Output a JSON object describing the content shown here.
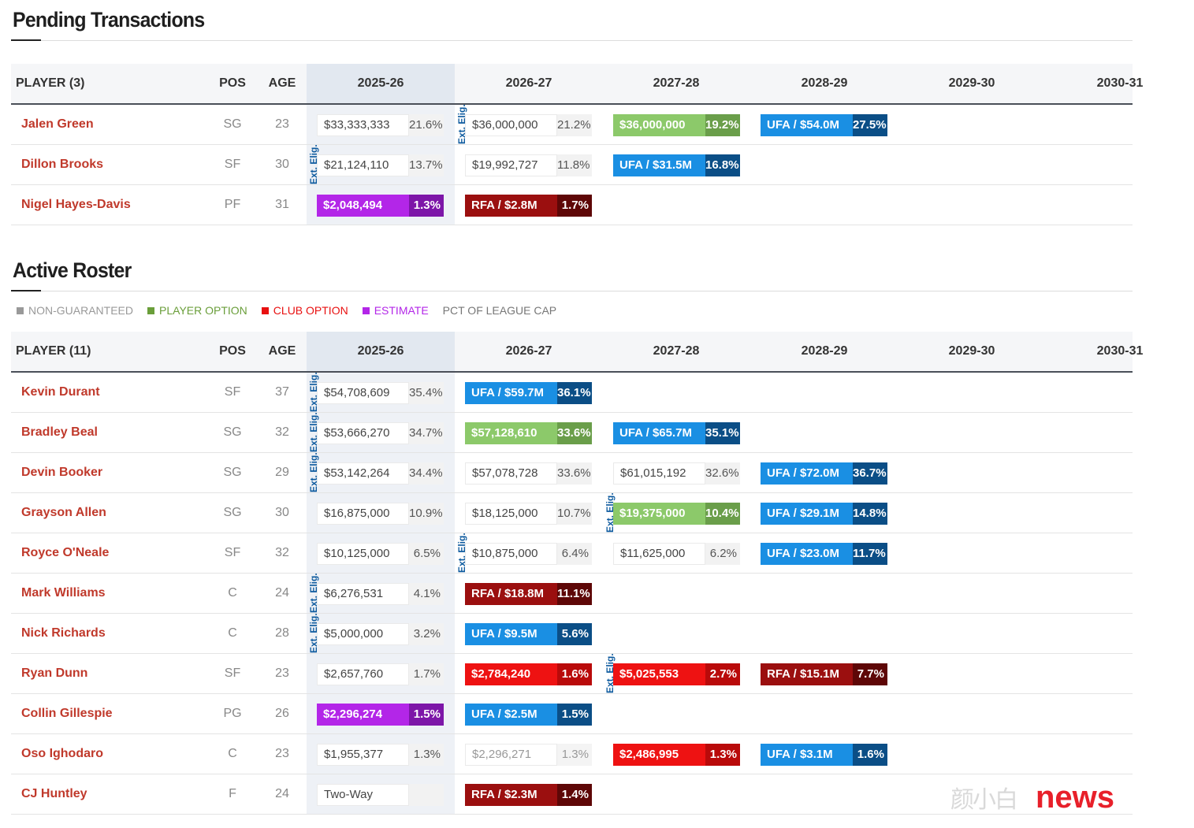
{
  "pending": {
    "title": "Pending Transactions",
    "headers": {
      "player": "PLAYER (3)",
      "pos": "POS",
      "age": "AGE",
      "years": [
        "2025-26",
        "2026-27",
        "2027-28",
        "2028-29",
        "2029-30",
        "2030-31"
      ]
    },
    "rows": [
      {
        "name": "Jalen Green",
        "pos": "SG",
        "age": "23",
        "contract": [
          {
            "type": "normal",
            "amount": "$33,333,333",
            "pct": "21.6%"
          },
          {
            "type": "normal",
            "amount": "$36,000,000",
            "pct": "21.2%",
            "elig": "Ext. Elig."
          },
          {
            "type": "player-option",
            "amount": "$36,000,000",
            "pct": "19.2%"
          },
          {
            "type": "ufa",
            "amount": "UFA / $54.0M",
            "pct": "27.5%"
          }
        ]
      },
      {
        "name": "Dillon Brooks",
        "pos": "SF",
        "age": "30",
        "contract": [
          {
            "type": "normal",
            "amount": "$21,124,110",
            "pct": "13.7%",
            "elig": "Ext. Elig."
          },
          {
            "type": "normal",
            "amount": "$19,992,727",
            "pct": "11.8%"
          },
          {
            "type": "ufa",
            "amount": "UFA / $31.5M",
            "pct": "16.8%"
          }
        ]
      },
      {
        "name": "Nigel Hayes-Davis",
        "pos": "PF",
        "age": "31",
        "contract": [
          {
            "type": "estimate",
            "amount": "$2,048,494",
            "pct": "1.3%"
          },
          {
            "type": "rfa",
            "amount": "RFA / $2.8M",
            "pct": "1.7%"
          }
        ]
      }
    ]
  },
  "roster": {
    "title": "Active Roster",
    "legend": [
      {
        "label": "NON-GUARANTEED",
        "color": "#999999"
      },
      {
        "label": "PLAYER OPTION",
        "color": "#6a9e3a"
      },
      {
        "label": "CLUB OPTION",
        "color": "#e81010"
      },
      {
        "label": "ESTIMATE",
        "color": "#b326e8"
      },
      {
        "label": "PCT OF LEAGUE CAP",
        "color": "#777777"
      }
    ],
    "headers": {
      "player": "PLAYER (11)",
      "pos": "POS",
      "age": "AGE",
      "years": [
        "2025-26",
        "2026-27",
        "2027-28",
        "2028-29",
        "2029-30",
        "2030-31"
      ]
    },
    "rows": [
      {
        "name": "Kevin Durant",
        "pos": "SF",
        "age": "37",
        "contract": [
          {
            "type": "normal",
            "amount": "$54,708,609",
            "pct": "35.4%",
            "elig": "Ext. Elig."
          },
          {
            "type": "ufa",
            "amount": "UFA / $59.7M",
            "pct": "36.1%"
          }
        ]
      },
      {
        "name": "Bradley Beal",
        "pos": "SG",
        "age": "32",
        "contract": [
          {
            "type": "normal",
            "amount": "$53,666,270",
            "pct": "34.7%",
            "elig": "Ext. Elig."
          },
          {
            "type": "player-option",
            "amount": "$57,128,610",
            "pct": "33.6%"
          },
          {
            "type": "ufa",
            "amount": "UFA / $65.7M",
            "pct": "35.1%"
          }
        ]
      },
      {
        "name": "Devin Booker",
        "pos": "SG",
        "age": "29",
        "contract": [
          {
            "type": "normal",
            "amount": "$53,142,264",
            "pct": "34.4%",
            "elig": "Ext. Elig."
          },
          {
            "type": "normal",
            "amount": "$57,078,728",
            "pct": "33.6%"
          },
          {
            "type": "normal",
            "amount": "$61,015,192",
            "pct": "32.6%"
          },
          {
            "type": "ufa",
            "amount": "UFA / $72.0M",
            "pct": "36.7%"
          }
        ]
      },
      {
        "name": "Grayson Allen",
        "pos": "SG",
        "age": "30",
        "contract": [
          {
            "type": "normal",
            "amount": "$16,875,000",
            "pct": "10.9%"
          },
          {
            "type": "normal",
            "amount": "$18,125,000",
            "pct": "10.7%"
          },
          {
            "type": "player-option",
            "amount": "$19,375,000",
            "pct": "10.4%",
            "elig": "Ext. Elig."
          },
          {
            "type": "ufa",
            "amount": "UFA / $29.1M",
            "pct": "14.8%"
          }
        ]
      },
      {
        "name": "Royce O'Neale",
        "pos": "SF",
        "age": "32",
        "contract": [
          {
            "type": "normal",
            "amount": "$10,125,000",
            "pct": "6.5%"
          },
          {
            "type": "normal",
            "amount": "$10,875,000",
            "pct": "6.4%",
            "elig": "Ext. Elig."
          },
          {
            "type": "normal",
            "amount": "$11,625,000",
            "pct": "6.2%"
          },
          {
            "type": "ufa",
            "amount": "UFA / $23.0M",
            "pct": "11.7%"
          }
        ]
      },
      {
        "name": "Mark Williams",
        "pos": "C",
        "age": "24",
        "contract": [
          {
            "type": "normal",
            "amount": "$6,276,531",
            "pct": "4.1%",
            "elig": "Ext. Elig."
          },
          {
            "type": "rfa",
            "amount": "RFA / $18.8M",
            "pct": "11.1%"
          }
        ]
      },
      {
        "name": "Nick Richards",
        "pos": "C",
        "age": "28",
        "contract": [
          {
            "type": "normal",
            "amount": "$5,000,000",
            "pct": "3.2%",
            "elig": "Ext. Elig."
          },
          {
            "type": "ufa",
            "amount": "UFA / $9.5M",
            "pct": "5.6%"
          }
        ]
      },
      {
        "name": "Ryan Dunn",
        "pos": "SF",
        "age": "23",
        "contract": [
          {
            "type": "normal",
            "amount": "$2,657,760",
            "pct": "1.7%"
          },
          {
            "type": "club-option",
            "amount": "$2,784,240",
            "pct": "1.6%"
          },
          {
            "type": "club-option",
            "amount": "$5,025,553",
            "pct": "2.7%",
            "elig": "Ext. Elig."
          },
          {
            "type": "rfa",
            "amount": "RFA / $15.1M",
            "pct": "7.7%"
          }
        ]
      },
      {
        "name": "Collin Gillespie",
        "pos": "PG",
        "age": "26",
        "contract": [
          {
            "type": "estimate",
            "amount": "$2,296,274",
            "pct": "1.5%"
          },
          {
            "type": "ufa",
            "amount": "UFA / $2.5M",
            "pct": "1.5%"
          }
        ]
      },
      {
        "name": "Oso Ighodaro",
        "pos": "C",
        "age": "23",
        "contract": [
          {
            "type": "normal",
            "amount": "$1,955,377",
            "pct": "1.3%"
          },
          {
            "type": "non-guaranteed",
            "amount": "$2,296,271",
            "pct": "1.3%"
          },
          {
            "type": "club-option",
            "amount": "$2,486,995",
            "pct": "1.3%"
          },
          {
            "type": "ufa",
            "amount": "UFA / $3.1M",
            "pct": "1.6%"
          }
        ]
      },
      {
        "name": "CJ Huntley",
        "pos": "F",
        "age": "24",
        "contract": [
          {
            "type": "two-way",
            "amount": "Two-Way",
            "pct": ""
          },
          {
            "type": "rfa",
            "amount": "RFA / $2.3M",
            "pct": "1.4%"
          }
        ]
      }
    ]
  },
  "watermark": {
    "cn": "颜小白",
    "en": "news"
  }
}
